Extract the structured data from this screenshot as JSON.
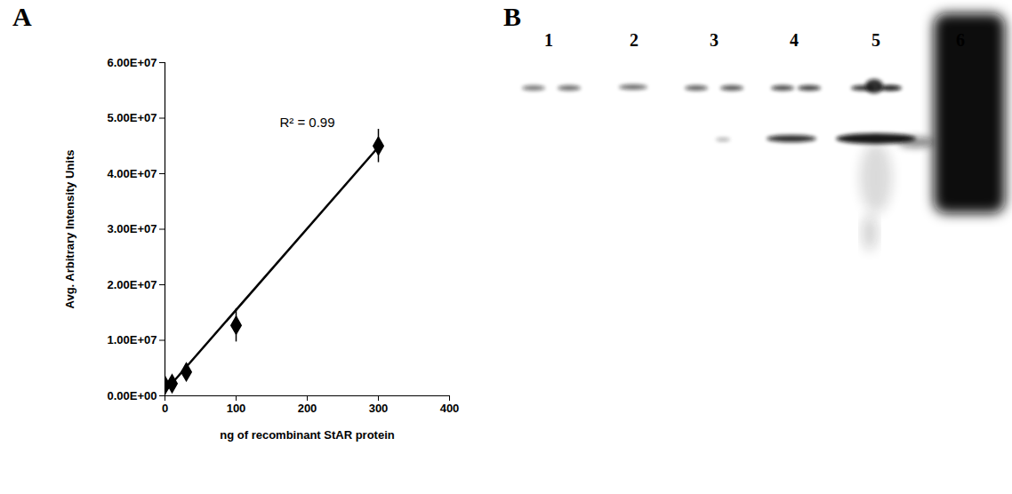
{
  "chart_data": {
    "type": "scatter",
    "panel": "A",
    "x_label": "ng of recombinant StAR protein",
    "y_label": "Avg. Arbitrary Intensity Units",
    "annotation": "R² = 0.99",
    "x": [
      0,
      10,
      30,
      100,
      300
    ],
    "values": [
      1900000,
      2200000,
      4300000,
      12700000,
      45000000
    ],
    "errors": [
      300000,
      300000,
      500000,
      3000000,
      3000000
    ],
    "trendline": {
      "x": [
        0,
        300
      ],
      "values": [
        800000,
        44800000
      ]
    },
    "color": "#000000",
    "marker": "diamond",
    "xlim": [
      0,
      400
    ],
    "xticks": [
      0,
      100,
      200,
      300,
      400
    ],
    "ylim": [
      0,
      60000000
    ],
    "yticks": [
      {
        "value": 0,
        "label": "0.00E+00"
      },
      {
        "value": 10000000,
        "label": "1.00E+07"
      },
      {
        "value": 20000000,
        "label": "2.00E+07"
      },
      {
        "value": 30000000,
        "label": "3.00E+07"
      },
      {
        "value": 40000000,
        "label": "4.00E+07"
      },
      {
        "value": 50000000,
        "label": "5.00E+07"
      },
      {
        "value": 60000000,
        "label": "6.00E+07"
      }
    ]
  },
  "blot": {
    "panel": "B",
    "lanes": [
      "1",
      "2",
      "3",
      "4",
      "5",
      "6"
    ]
  }
}
